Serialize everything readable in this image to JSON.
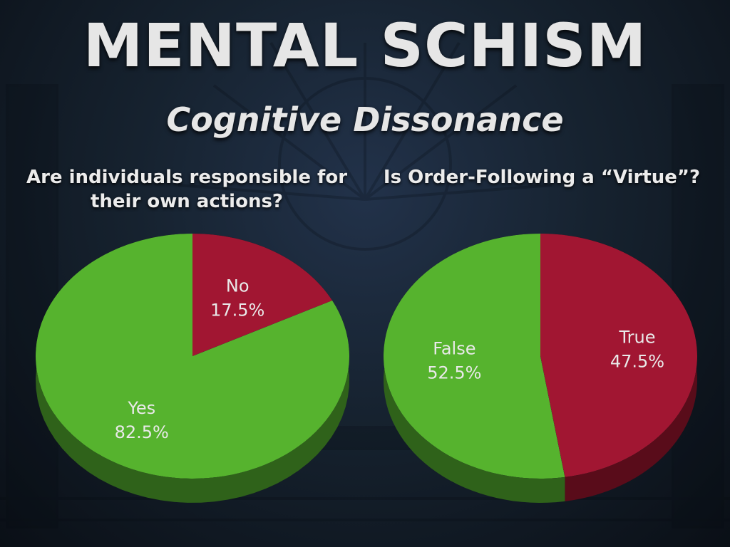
{
  "slide": {
    "title": "MENTAL SCHISM",
    "subtitle": "Cognitive Dissonance"
  },
  "colors": {
    "green": "#56b32f",
    "red": "#a11630",
    "text": "#e6e6e6"
  },
  "chart_data": [
    {
      "type": "pie",
      "title": "Are individuals responsible for their own actions?",
      "slices": [
        {
          "label": "No",
          "value": 17.5,
          "value_label": "17.5%",
          "color": "#a11630"
        },
        {
          "label": "Yes",
          "value": 82.5,
          "value_label": "82.5%",
          "color": "#56b32f"
        }
      ]
    },
    {
      "type": "pie",
      "title": "Is Order-Following a “Virtue”?",
      "slices": [
        {
          "label": "True",
          "value": 47.5,
          "value_label": "47.5%",
          "color": "#a11630"
        },
        {
          "label": "False",
          "value": 52.5,
          "value_label": "52.5%",
          "color": "#56b32f"
        }
      ]
    }
  ]
}
